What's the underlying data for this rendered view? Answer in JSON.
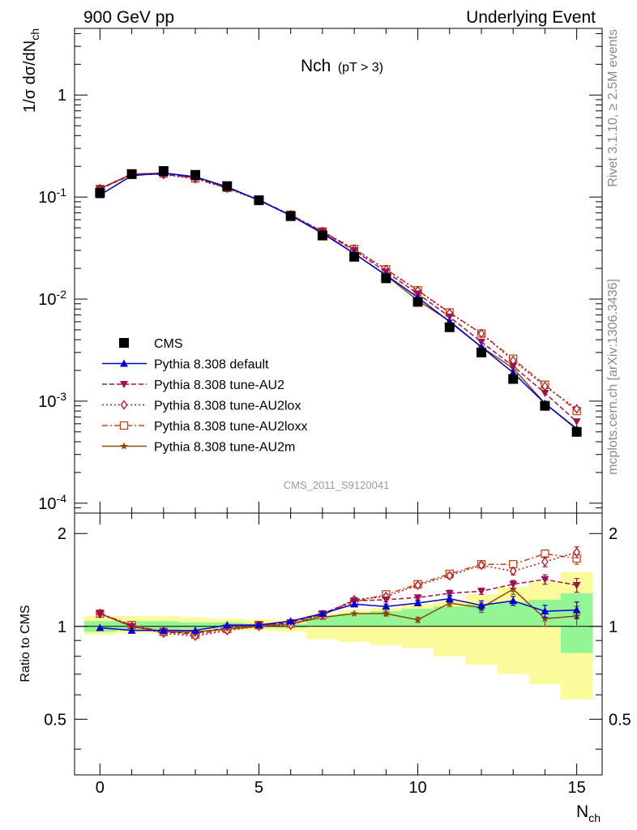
{
  "header": {
    "left": "900 GeV pp",
    "right": "Underlying Event"
  },
  "side_labels": {
    "rivet": "Rivet 3.1.10, ≥ 2.5M events",
    "mcplots": "mcplots.cern.ch [arXiv:1306.3436]"
  },
  "chart_data": [
    {
      "type": "line",
      "panel": "main",
      "title": "Nch",
      "subtitle": "(pT >  3)",
      "ylabel": "1/σ dσ/dN",
      "ylabel_sub": "ch",
      "xlabel": "N",
      "xlabel_sub": "ch",
      "watermark": "CMS_2011_S9120041",
      "xlim": [
        -0.8,
        15.8
      ],
      "ylim": [
        8e-05,
        4.5
      ],
      "yscale": "log",
      "ytick_labels": [
        {
          "base": "10",
          "exp": "-4",
          "value": 0.0001
        },
        {
          "base": "10",
          "exp": "-3",
          "value": 0.001
        },
        {
          "base": "10",
          "exp": "-2",
          "value": 0.01
        },
        {
          "base": "10",
          "exp": "-1",
          "value": 0.1
        },
        {
          "base": "1",
          "exp": "",
          "value": 1
        }
      ],
      "legend_position": "lower-left",
      "x": [
        0,
        1,
        2,
        3,
        4,
        5,
        6,
        7,
        8,
        9,
        10,
        11,
        12,
        13,
        14,
        15
      ],
      "series": [
        {
          "name": "CMS",
          "color": "#000000",
          "marker": "square",
          "line": "none",
          "values": [
            0.11,
            0.168,
            0.18,
            0.165,
            0.128,
            0.093,
            0.065,
            0.042,
            0.026,
            0.016,
            0.0094,
            0.0053,
            0.003,
            0.00165,
            0.0009,
            0.0005
          ]
        },
        {
          "name": "Pythia 8.308 default",
          "color": "#0000d0",
          "marker": "triangle-up",
          "line": "solid",
          "values": [
            0.105,
            0.162,
            0.172,
            0.158,
            0.126,
            0.093,
            0.066,
            0.044,
            0.028,
            0.0172,
            0.0104,
            0.006,
            0.0034,
            0.0019,
            0.00095,
            0.00053
          ]
        },
        {
          "name": "Pythia 8.308 tune-AU2",
          "color": "#a01050",
          "marker": "triangle-down",
          "line": "dashed",
          "values": [
            0.12,
            0.165,
            0.168,
            0.154,
            0.124,
            0.094,
            0.066,
            0.046,
            0.03,
            0.0185,
            0.0113,
            0.0067,
            0.0038,
            0.0022,
            0.0012,
            0.00063
          ]
        },
        {
          "name": "Pythia 8.308 tune-AU2lox",
          "color": "#b01818",
          "marker": "diamond-open",
          "line": "dotted",
          "values": [
            0.121,
            0.169,
            0.166,
            0.151,
            0.122,
            0.093,
            0.067,
            0.046,
            0.031,
            0.0195,
            0.0121,
            0.0073,
            0.0046,
            0.0025,
            0.0014,
            0.00084
          ]
        },
        {
          "name": "Pythia 8.308 tune-AU2loxx",
          "color": "#c04818",
          "marker": "square-open",
          "line": "dashdot",
          "values": [
            0.12,
            0.168,
            0.17,
            0.152,
            0.123,
            0.094,
            0.067,
            0.046,
            0.031,
            0.0196,
            0.0122,
            0.0074,
            0.0046,
            0.0026,
            0.00145,
            0.0008
          ]
        },
        {
          "name": "Pythia 8.308 tune-AU2m",
          "color": "#8a4a08",
          "marker": "star",
          "line": "solid",
          "values": [
            0.121,
            0.168,
            0.172,
            0.158,
            0.125,
            0.093,
            0.066,
            0.045,
            0.028,
            0.0171,
            0.0097,
            0.0061,
            0.0034,
            0.0021,
            0.00095,
            0.00054
          ]
        }
      ]
    },
    {
      "type": "line",
      "panel": "ratio",
      "ylabel": "Ratio to CMS",
      "xlim": [
        -0.8,
        15.8
      ],
      "ylim": [
        0.33,
        2.33
      ],
      "xtick_labels": [
        "0",
        "5",
        "10",
        "15"
      ],
      "ytick_labels": [
        "0.5",
        "1",
        "2"
      ],
      "ytick_values": [
        0.5,
        1,
        2
      ],
      "x": [
        0,
        1,
        2,
        3,
        4,
        5,
        6,
        7,
        8,
        9,
        10,
        11,
        12,
        13,
        14,
        15
      ],
      "bands": [
        {
          "name": "stat",
          "color": "#94f594",
          "lower": [
            0.96,
            0.97,
            0.97,
            0.98,
            0.98,
            0.99,
            0.99,
            1.0,
            1.0,
            1.0,
            1.0,
            1.0,
            1.0,
            1.0,
            1.0,
            0.82
          ],
          "upper": [
            1.04,
            1.04,
            1.04,
            1.03,
            1.03,
            1.02,
            1.02,
            1.08,
            1.1,
            1.12,
            1.14,
            1.16,
            1.18,
            1.2,
            1.22,
            1.28
          ]
        },
        {
          "name": "total",
          "color": "#fbfb9b",
          "lower": [
            0.94,
            0.95,
            0.95,
            0.96,
            0.97,
            0.97,
            0.96,
            0.91,
            0.89,
            0.87,
            0.85,
            0.8,
            0.75,
            0.7,
            0.65,
            0.58
          ],
          "upper": [
            1.08,
            1.08,
            1.08,
            1.07,
            1.06,
            1.05,
            1.05,
            1.1,
            1.13,
            1.15,
            1.18,
            1.21,
            1.27,
            1.34,
            1.4,
            1.5
          ]
        }
      ],
      "series": [
        {
          "name": "Pythia 8.308 default",
          "values": [
            0.99,
            0.97,
            0.97,
            0.97,
            1.01,
            1.01,
            1.04,
            1.1,
            1.18,
            1.16,
            1.19,
            1.23,
            1.17,
            1.21,
            1.12,
            1.13
          ],
          "errors": [
            0,
            0,
            0,
            0,
            0,
            0,
            0,
            0,
            0,
            0.02,
            0.02,
            0.03,
            0.04,
            0.04,
            0.05,
            0.07
          ]
        },
        {
          "name": "Pythia 8.308 tune-AU2",
          "values": [
            1.1,
            1.0,
            0.96,
            0.95,
            0.99,
            1.01,
            1.03,
            1.1,
            1.21,
            1.22,
            1.24,
            1.28,
            1.3,
            1.37,
            1.42,
            1.36
          ],
          "errors": [
            0,
            0,
            0,
            0,
            0,
            0,
            0,
            0,
            0,
            0.02,
            0.02,
            0.03,
            0.03,
            0.04,
            0.05,
            0.07
          ]
        },
        {
          "name": "Pythia 8.308 tune-AU2lox",
          "values": [
            1.1,
            1.0,
            0.95,
            0.93,
            0.97,
            1.0,
            1.01,
            1.09,
            1.22,
            1.25,
            1.36,
            1.46,
            1.58,
            1.51,
            1.62,
            1.74
          ],
          "errors": [
            0,
            0,
            0,
            0,
            0,
            0,
            0,
            0,
            0.02,
            0.02,
            0.02,
            0.03,
            0.03,
            0.04,
            0.06,
            0.07
          ]
        },
        {
          "name": "Pythia 8.308 tune-AU2loxx",
          "values": [
            1.1,
            1.01,
            0.96,
            0.94,
            0.98,
            1.01,
            1.02,
            1.09,
            1.2,
            1.27,
            1.37,
            1.48,
            1.59,
            1.59,
            1.72,
            1.66
          ],
          "errors": [
            0,
            0,
            0,
            0,
            0,
            0,
            0,
            0,
            0.02,
            0.02,
            0.02,
            0.03,
            0.03,
            0.04,
            0.05,
            0.07
          ]
        },
        {
          "name": "Pythia 8.308 tune-AU2m",
          "values": [
            1.1,
            1.0,
            0.96,
            0.96,
            0.98,
            1.0,
            1.02,
            1.07,
            1.1,
            1.1,
            1.05,
            1.19,
            1.15,
            1.32,
            1.06,
            1.08
          ],
          "errors": [
            0,
            0,
            0,
            0,
            0,
            0,
            0,
            0,
            0,
            0.02,
            0.02,
            0.03,
            0.04,
            0.05,
            0.06,
            0.08
          ]
        }
      ]
    }
  ]
}
